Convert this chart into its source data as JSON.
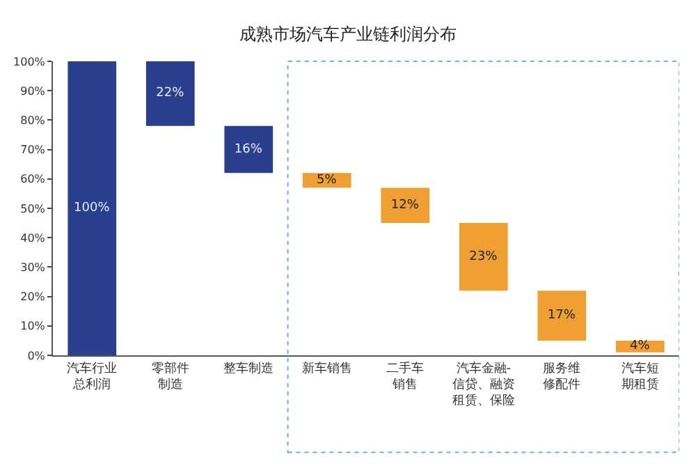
{
  "chart_data": {
    "type": "bar",
    "title": "成熟市场汽车产业链利润分布",
    "categories": [
      "汽车行业总利润",
      "零部件制造",
      "整车制造",
      "新车销售",
      "二手车销售",
      "汽车金融-信贷、融资租赁、保险",
      "服务维修配件",
      "汽车短期租赁"
    ],
    "values": [
      100,
      22,
      16,
      5,
      12,
      23,
      17,
      4
    ],
    "base": [
      0,
      78,
      62,
      57,
      45,
      22,
      5,
      1
    ],
    "value_labels": [
      "100%",
      "22%",
      "16%",
      "5%",
      "12%",
      "23%",
      "17%",
      "4%"
    ],
    "colors": [
      "#2b3f8f",
      "#2b3f8f",
      "#2b3f8f",
      "#f0a032",
      "#f0a032",
      "#f0a032",
      "#f0a032",
      "#f0a032"
    ],
    "ylim": [
      0,
      100
    ],
    "yticks": [
      {
        "value": 0,
        "label": "0%"
      },
      {
        "value": 10,
        "label": "10%"
      },
      {
        "value": 20,
        "label": "20%"
      },
      {
        "value": 30,
        "label": "30%"
      },
      {
        "value": 40,
        "label": "40%"
      },
      {
        "value": 50,
        "label": "50%"
      },
      {
        "value": 60,
        "label": "60%"
      },
      {
        "value": 70,
        "label": "70%"
      },
      {
        "value": 80,
        "label": "80%"
      },
      {
        "value": 90,
        "label": "90%"
      },
      {
        "value": 100,
        "label": "100%"
      }
    ],
    "grid": false
  }
}
